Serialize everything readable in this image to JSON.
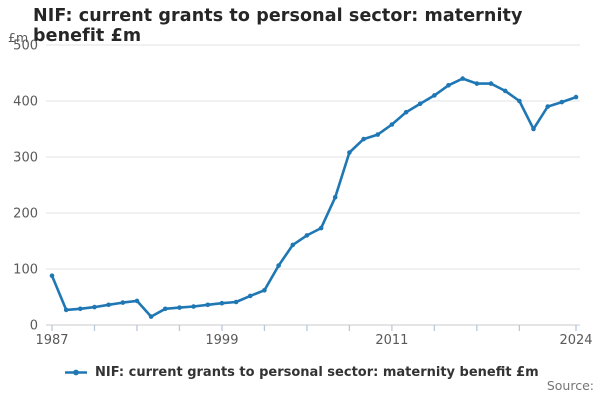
{
  "title": "NIF: current grants to personal sector: maternity benefit £m",
  "y_axis": {
    "unit_label": "£m",
    "ticks": [
      0,
      100,
      200,
      300,
      400,
      500
    ]
  },
  "x_axis": {
    "tick_years": [
      1987,
      1990,
      1993,
      1996,
      1999,
      2002,
      2005,
      2008,
      2011,
      2014,
      2017,
      2020,
      2024
    ],
    "labeled_ticks": [
      {
        "year": 1987,
        "label": "1987"
      },
      {
        "year": 1999,
        "label": "1999"
      },
      {
        "year": 2011,
        "label": "2011"
      },
      {
        "year": 2024,
        "label": "2024"
      }
    ]
  },
  "legend": {
    "label": "NIF: current grants to personal sector: maternity benefit £m"
  },
  "source_label": "Source:",
  "colors": {
    "line": "#1f77b4",
    "gridline": "#e3e3e3",
    "axis_line": "#c9c9c9",
    "tick_mark": "#b9c9da",
    "axis_text": "#595959"
  },
  "chart_data": {
    "type": "line",
    "title": "NIF: current grants to personal sector: maternity benefit £m",
    "xlabel": "",
    "ylabel": "£m",
    "ylim": [
      0,
      500
    ],
    "xlim": [
      1987,
      2024
    ],
    "grid": "horizontal",
    "legend_position": "bottom",
    "marker": "circle",
    "line_color": "#1f77b4",
    "x": [
      1987,
      1988,
      1989,
      1990,
      1991,
      1992,
      1993,
      1994,
      1995,
      1996,
      1997,
      1998,
      1999,
      2000,
      2001,
      2002,
      2003,
      2004,
      2005,
      2006,
      2007,
      2008,
      2009,
      2010,
      2011,
      2012,
      2013,
      2014,
      2015,
      2016,
      2017,
      2018,
      2019,
      2020,
      2021,
      2022,
      2023,
      2024
    ],
    "values": [
      88,
      27,
      29,
      32,
      36,
      40,
      43,
      15,
      29,
      31,
      33,
      36,
      39,
      41,
      52,
      62,
      106,
      143,
      160,
      173,
      228,
      308,
      332,
      340,
      358,
      380,
      395,
      410,
      428,
      440,
      431,
      431,
      418,
      400,
      350,
      390,
      398,
      407
    ]
  }
}
